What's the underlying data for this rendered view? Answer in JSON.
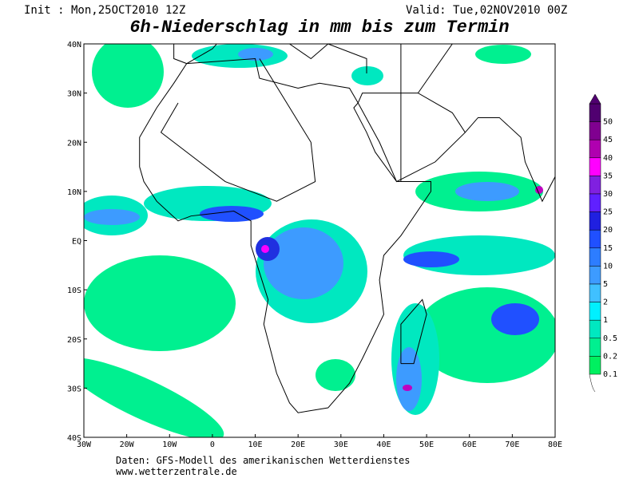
{
  "header": {
    "init": "Init : Mon,25OCT2010 12Z",
    "valid": "Valid: Tue,02NOV2010 00Z",
    "title": "6h-Niederschlag in mm bis zum Termin"
  },
  "map": {
    "lat_labels": [
      "40N",
      "30N",
      "20N",
      "10N",
      "EQ",
      "10S",
      "20S",
      "30S",
      "40S"
    ],
    "lon_labels": [
      "30W",
      "20W",
      "10W",
      "0",
      "10E",
      "20E",
      "30E",
      "40E",
      "50E",
      "60E",
      "70E",
      "80E"
    ]
  },
  "colorbar": {
    "levels": [
      "50",
      "45",
      "40",
      "35",
      "30",
      "25",
      "20",
      "15",
      "10",
      "5",
      "2",
      "1",
      "0.5",
      "0.2",
      "0.1"
    ]
  },
  "footer": {
    "source": "Daten: GFS-Modell des amerikanischen Wetterdienstes",
    "url": "www.wetterzentrale.de"
  }
}
